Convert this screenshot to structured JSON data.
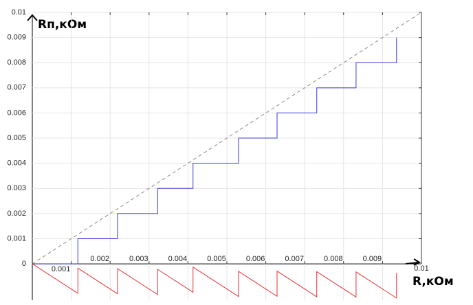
{
  "chart_data": {
    "type": "line",
    "ylabel": "Rп,кОм",
    "xlabel": "R,кОм",
    "xlim": [
      0,
      0.01
    ],
    "ylim": [
      -0.0015,
      0.01
    ],
    "xticks": [
      0.001,
      0.002,
      0.003,
      0.004,
      0.005,
      0.006,
      0.007,
      0.008,
      0.009,
      0.01
    ],
    "yticks": [
      0,
      0.001,
      0.002,
      0.003,
      0.004,
      0.005,
      0.006,
      0.007,
      0.008,
      0.009,
      0.01
    ],
    "grid": true,
    "series": [
      {
        "color": "#888888",
        "dashed": true,
        "x": [
          0,
          0.01
        ],
        "values": [
          0,
          0.01
        ]
      },
      {
        "color": "#3a3adf",
        "x": [
          0,
          0.00117,
          0.00117,
          0.00219,
          0.00219,
          0.00322,
          0.00322,
          0.00413,
          0.00413,
          0.0053,
          0.0053,
          0.00629,
          0.00629,
          0.00731,
          0.00731,
          0.00832,
          0.00832,
          0.00936,
          0.00936
        ],
        "values": [
          0,
          0,
          0.001,
          0.001,
          0.002,
          0.002,
          0.003,
          0.003,
          0.004,
          0.004,
          0.005,
          0.005,
          0.006,
          0.006,
          0.007,
          0.007,
          0.008,
          0.008,
          0.009
        ]
      },
      {
        "color": "#e63232",
        "x": [
          0,
          0.00117,
          0.00117,
          0.00219,
          0.00219,
          0.00322,
          0.00322,
          0.00413,
          0.00413,
          0.0053,
          0.0053,
          0.00629,
          0.00629,
          0.00731,
          0.00731,
          0.00832,
          0.00832,
          0.00936,
          0.00936
        ],
        "values": [
          0,
          -0.00117,
          -0.00017,
          -0.00119,
          -0.00019,
          -0.00122,
          -0.00022,
          -0.00113,
          -0.00013,
          -0.0013,
          -0.0003,
          -0.00129,
          -0.00029,
          -0.00131,
          -0.00031,
          -0.00132,
          -0.00032,
          -0.00136,
          -0.00036
        ]
      }
    ]
  }
}
